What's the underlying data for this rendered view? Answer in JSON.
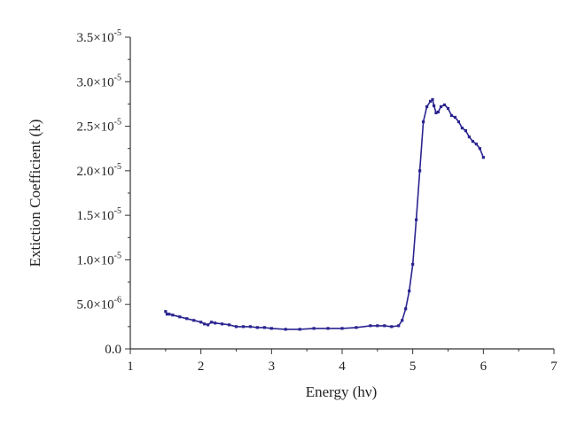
{
  "chart_data": {
    "type": "line",
    "title": "",
    "xlabel": "Energy (hν)",
    "ylabel": "Extiction Coefficient (k)",
    "xlim": [
      1,
      7
    ],
    "ylim": [
      0,
      3.5e-05
    ],
    "x_ticks": [
      "1",
      "2",
      "3",
      "4",
      "5",
      "6",
      "7"
    ],
    "y_ticks": [
      {
        "mant": "0.0",
        "exp": ""
      },
      {
        "mant": "5.0×10",
        "exp": "-6"
      },
      {
        "mant": "1.0×10",
        "exp": "-5"
      },
      {
        "mant": "1.5×10",
        "exp": "-5"
      },
      {
        "mant": "2.0×10",
        "exp": "-5"
      },
      {
        "mant": "2.5×10",
        "exp": "-5"
      },
      {
        "mant": "3.0×10",
        "exp": "-5"
      },
      {
        "mant": "3.5×10",
        "exp": "-5"
      }
    ],
    "grid": false,
    "legend": false,
    "color": "#2a2490",
    "series": [
      {
        "x": [
          1.5,
          1.52,
          1.55,
          1.6,
          1.7,
          1.8,
          1.9,
          2.0,
          2.05,
          2.1,
          2.15,
          2.2,
          2.3,
          2.4,
          2.5,
          2.6,
          2.7,
          2.8,
          2.9,
          3.0,
          3.2,
          3.4,
          3.6,
          3.8,
          4.0,
          4.2,
          4.4,
          4.5,
          4.6,
          4.7,
          4.8,
          4.85,
          4.9,
          4.95,
          5.0,
          5.05,
          5.1,
          5.15,
          5.2,
          5.25,
          5.28,
          5.3,
          5.33,
          5.36,
          5.4,
          5.45,
          5.5,
          5.55,
          5.6,
          5.65,
          5.7,
          5.75,
          5.8,
          5.85,
          5.9,
          5.95,
          6.0
        ],
        "y": [
          4.2e-06,
          3.9e-06,
          3.9e-06,
          3.8e-06,
          3.6e-06,
          3.4e-06,
          3.2e-06,
          3e-06,
          2.8e-06,
          2.7e-06,
          3e-06,
          2.9e-06,
          2.8e-06,
          2.7e-06,
          2.5e-06,
          2.5e-06,
          2.5e-06,
          2.4e-06,
          2.4e-06,
          2.3e-06,
          2.2e-06,
          2.2e-06,
          2.3e-06,
          2.3e-06,
          2.3e-06,
          2.4e-06,
          2.6e-06,
          2.6e-06,
          2.6e-06,
          2.5e-06,
          2.6e-06,
          3.2e-06,
          4.5e-06,
          6.5e-06,
          9.5e-06,
          1.45e-05,
          2e-05,
          2.55e-05,
          2.72e-05,
          2.78e-05,
          2.8e-05,
          2.73e-05,
          2.65e-05,
          2.66e-05,
          2.72e-05,
          2.74e-05,
          2.7e-05,
          2.62e-05,
          2.6e-05,
          2.55e-05,
          2.48e-05,
          2.45e-05,
          2.38e-05,
          2.33e-05,
          2.3e-05,
          2.25e-05,
          2.15e-05
        ]
      }
    ]
  }
}
